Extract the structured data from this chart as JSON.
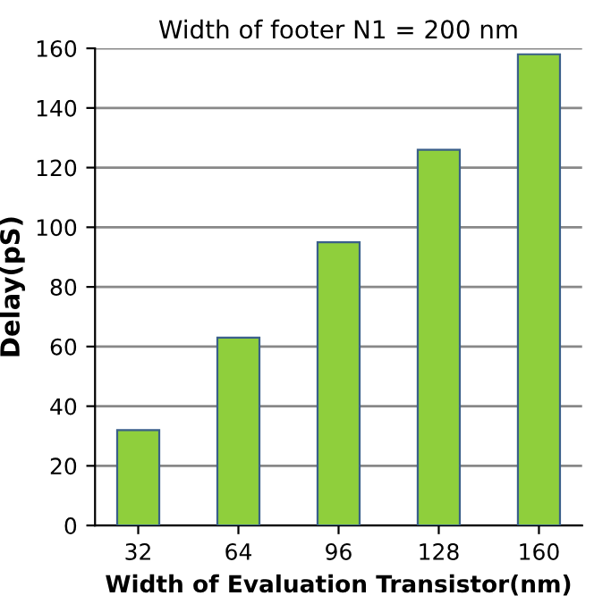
{
  "chart_data": {
    "type": "bar",
    "title": "Width of footer N1 = 200 nm",
    "xlabel": "Width of Evaluation Transistor(nm)",
    "ylabel": "Delay(pS)",
    "categories": [
      "32",
      "64",
      "96",
      "128",
      "160"
    ],
    "values": [
      32,
      63,
      95,
      126,
      158
    ],
    "color": "#8fcf3c",
    "ylim": [
      0,
      160
    ],
    "yticks": [
      0,
      20,
      40,
      60,
      80,
      100,
      120,
      140,
      160
    ],
    "grid": "y",
    "legend": false
  }
}
